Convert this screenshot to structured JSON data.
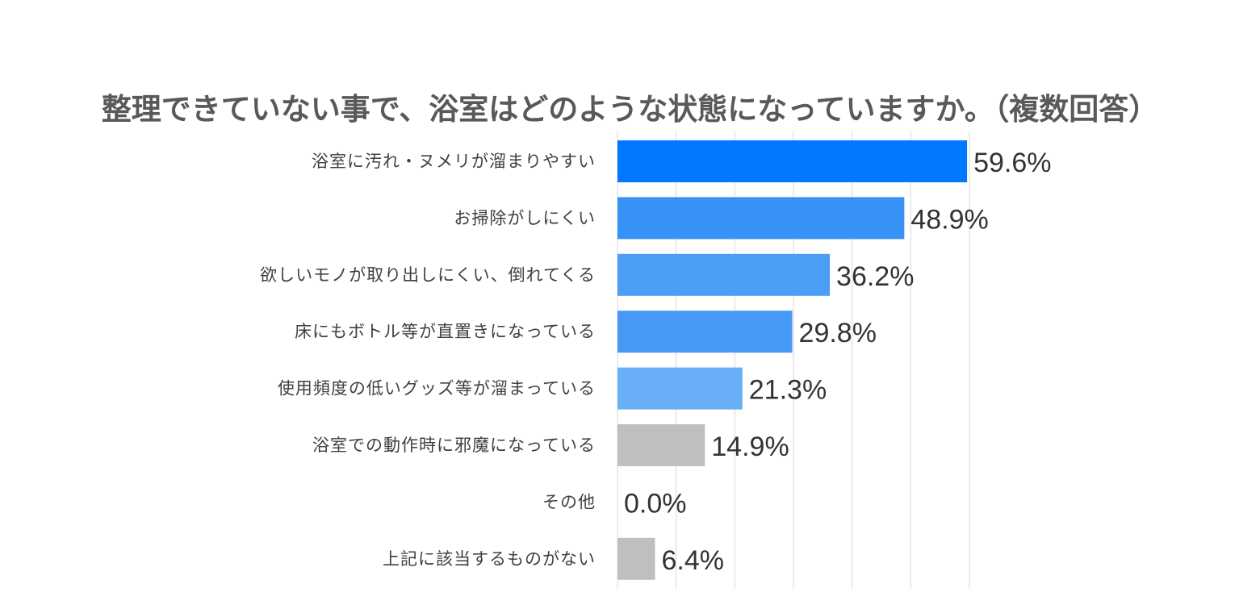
{
  "chart_data": {
    "type": "bar",
    "orientation": "horizontal",
    "title": "整理できていない事で、浴室はどのような状態になっていますか。（複数回答）",
    "categories": [
      "浴室に汚れ・ヌメリが溜まりやすい",
      "お掃除がしにくい",
      "欲しいモノが取り出しにくい、倒れてくる",
      "床にもボトル等が直置きになっている",
      "使用頻度の低いグッズ等が溜まっている",
      "浴室での動作時に邪魔になっている",
      "その他",
      "上記に該当するものがない"
    ],
    "values": [
      59.6,
      48.9,
      36.2,
      29.8,
      21.3,
      14.9,
      0.0,
      6.4
    ],
    "value_labels": [
      "59.6%",
      "48.9%",
      "36.2%",
      "29.8%",
      "21.3%",
      "14.9%",
      "0.0%",
      "6.4%"
    ],
    "colors": [
      "#0078FF",
      "#3892F5",
      "#4C9DF5",
      "#4899F5",
      "#6AAEF7",
      "#BFBFBF",
      "#BFBFBF",
      "#BFBFBF"
    ],
    "xlim": [
      0,
      60
    ],
    "grid": true,
    "legend": "none",
    "xlabel": "",
    "ylabel": ""
  }
}
